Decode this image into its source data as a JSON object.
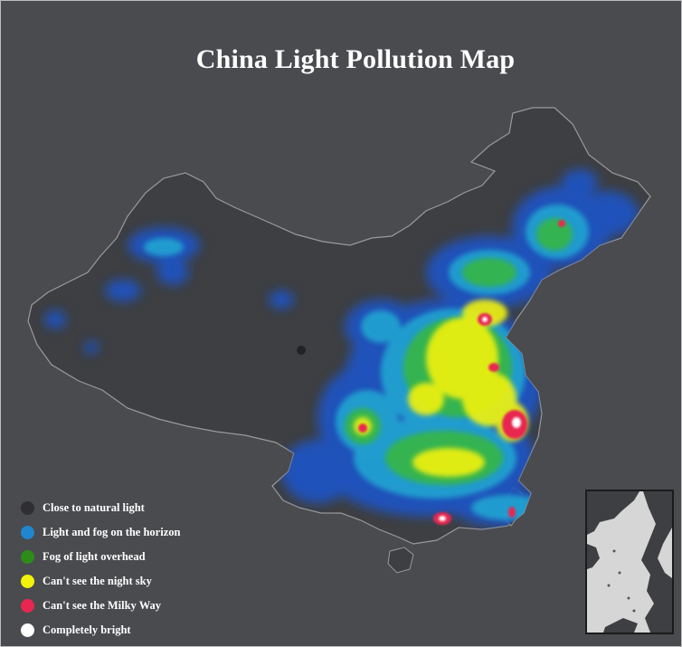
{
  "title": "China Light Pollution Map",
  "legend": [
    {
      "label": "Close to natural light",
      "color": "#2f2f33"
    },
    {
      "label": "Light and fog on the horizon",
      "color": "#1f86cf"
    },
    {
      "label": "Fog of light overhead",
      "color": "#2e8b1a"
    },
    {
      "label": "Can't see the night sky",
      "color": "#f2f20a"
    },
    {
      "label": "Can't see the Milky Way",
      "color": "#e8264f"
    },
    {
      "label": "Completely bright",
      "color": "#ffffff"
    }
  ],
  "colors": {
    "background": "#4a4b4f",
    "land": "#3e3f42",
    "border": "#9a9a9a",
    "glow_blue": "#1f55c8",
    "glow_cyan": "#21b5d6",
    "glow_green": "#39b83a",
    "glow_yellow": "#f2f20a",
    "glow_red": "#e8264f",
    "glow_white": "#ffffff"
  }
}
